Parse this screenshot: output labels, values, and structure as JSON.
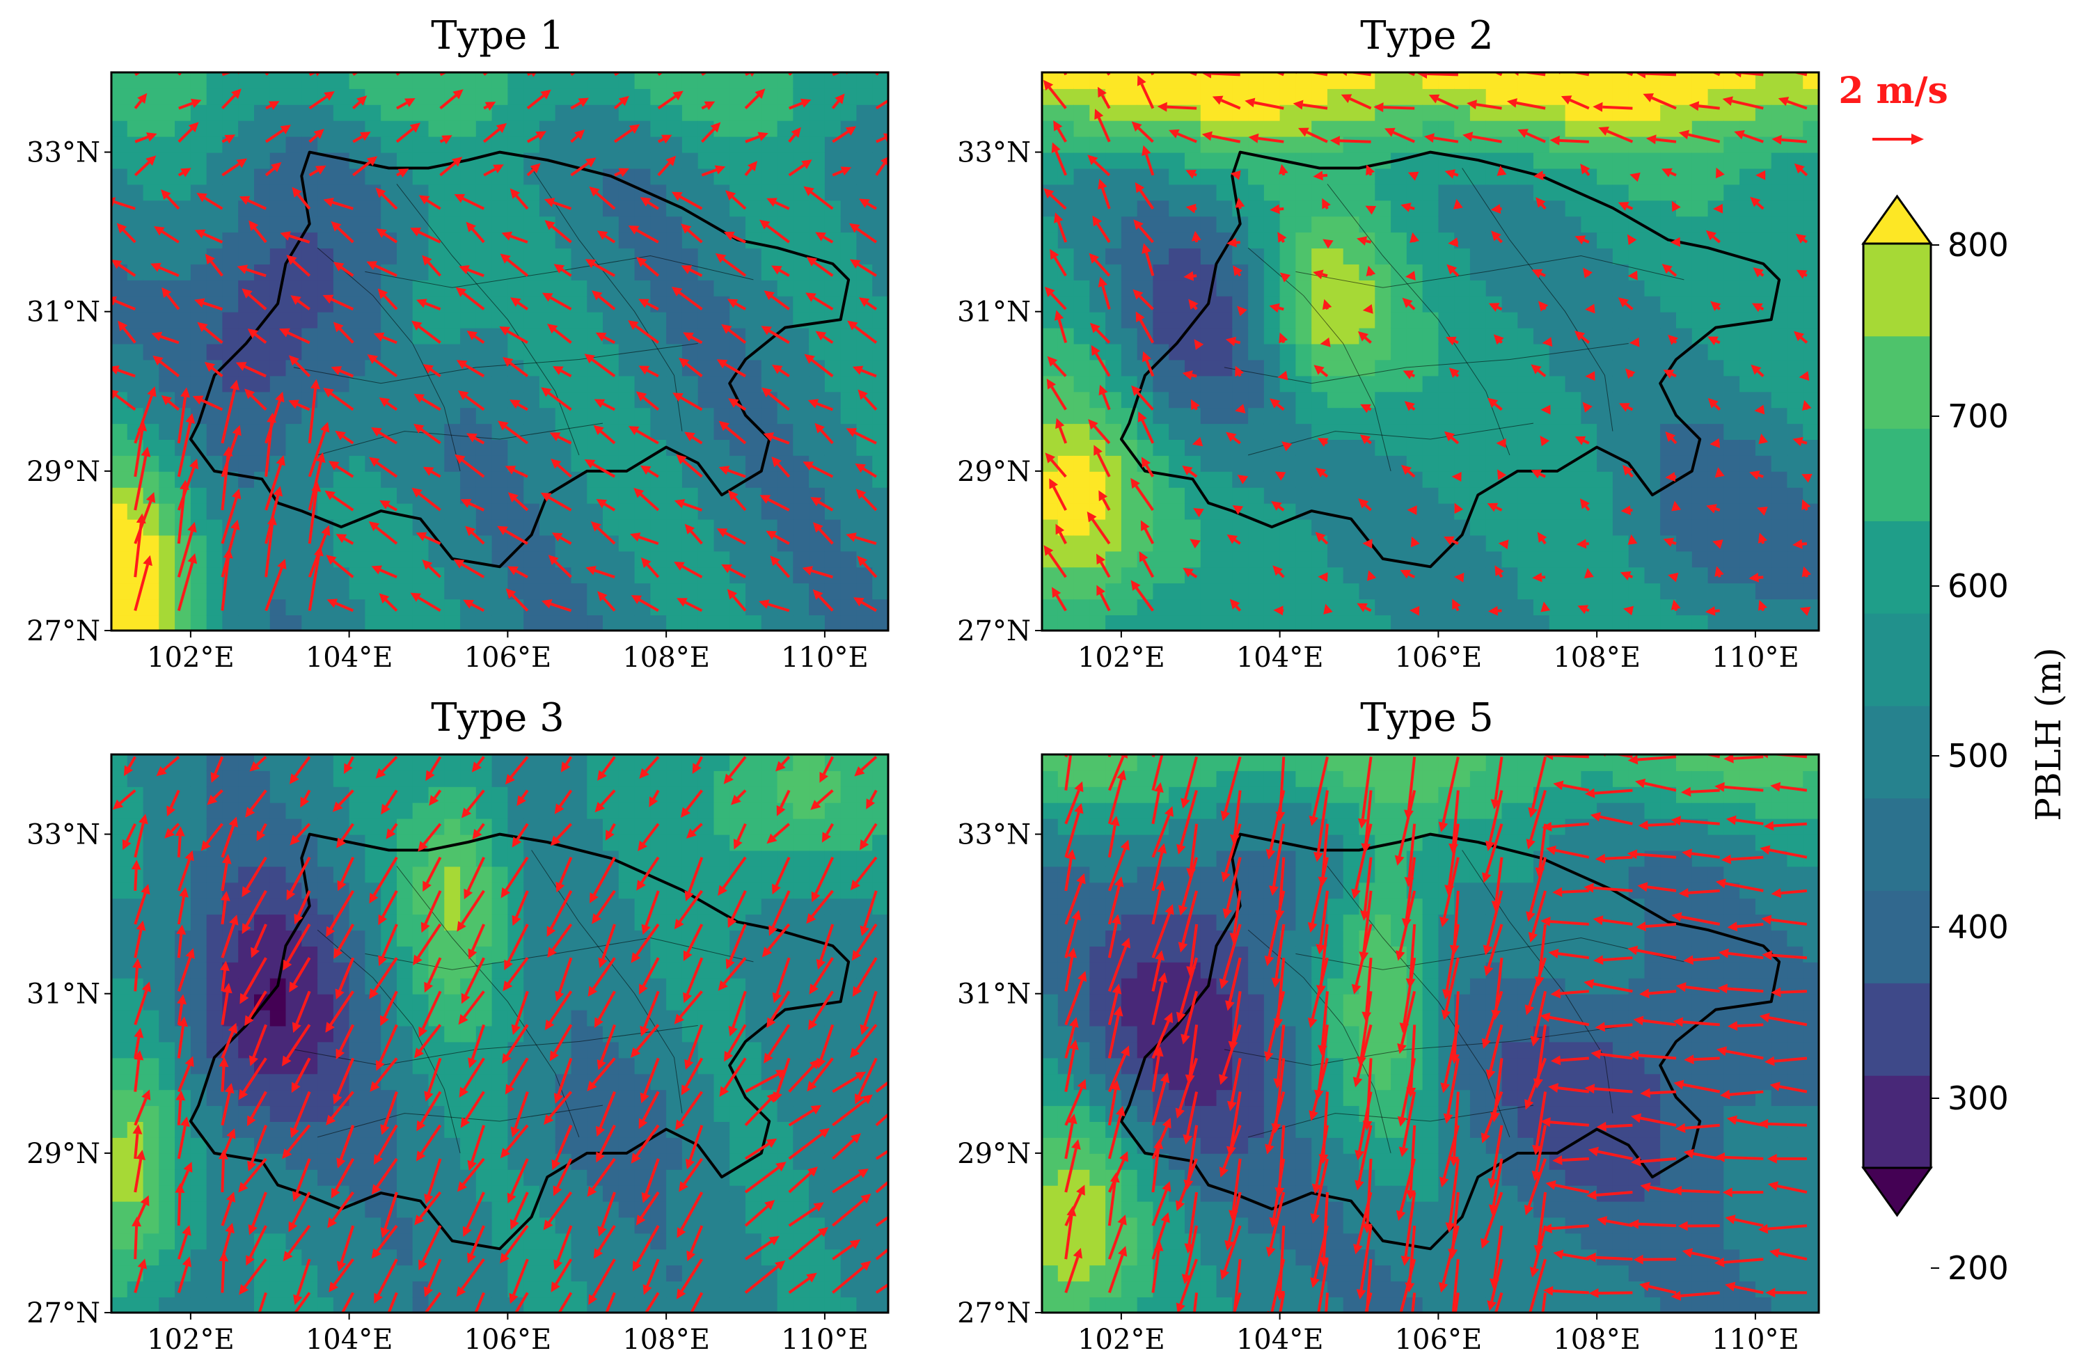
{
  "panels": [
    {
      "title": "Type 1",
      "pattern": 1
    },
    {
      "title": "Type 2",
      "pattern": 2
    },
    {
      "title": "Type 3",
      "pattern": 3
    },
    {
      "title": "Type 5",
      "pattern": 5
    }
  ],
  "axes": {
    "lon_ticks": [
      "102°E",
      "104°E",
      "106°E",
      "108°E",
      "110°E"
    ],
    "lon_values": [
      102,
      104,
      106,
      108,
      110
    ],
    "lat_ticks": [
      "33°N",
      "31°N",
      "29°N",
      "27°N"
    ],
    "lat_values": [
      33,
      31,
      29,
      27
    ],
    "lon_range": [
      101,
      110.8
    ],
    "lat_range": [
      27,
      34
    ]
  },
  "colorbar": {
    "label": "PBLH (m)",
    "ticks": [
      "200",
      "300",
      "400",
      "500",
      "600",
      "700",
      "800"
    ],
    "levels": [
      200,
      250,
      300,
      350,
      400,
      450,
      500,
      550,
      600,
      650,
      700,
      750,
      800
    ],
    "colors": [
      "#440154",
      "#482878",
      "#3e4989",
      "#31688e",
      "#26828e",
      "#1f9e89",
      "#35b779",
      "#4ec36b",
      "#a6d936",
      "#fde725"
    ],
    "extend": "both"
  },
  "reference_vector": {
    "label": "2 m/s",
    "speed": 2,
    "color": "#ff1a1a"
  },
  "basin_outline_color": "#000000"
}
